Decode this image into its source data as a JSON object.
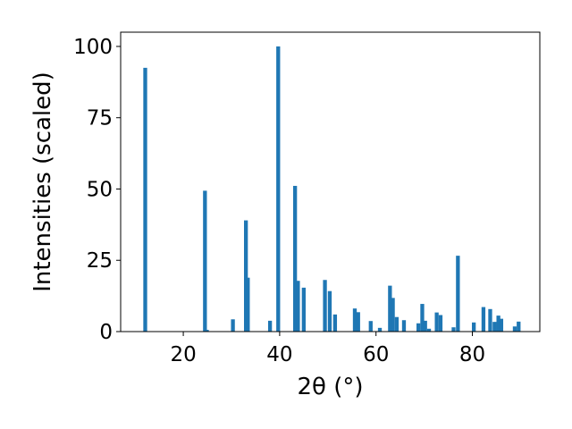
{
  "chart_data": {
    "type": "bar",
    "title": "",
    "xlabel": "2θ (°)",
    "ylabel": "Intensities (scaled)",
    "xlim": [
      7,
      94
    ],
    "ylim": [
      0,
      105
    ],
    "xticks": [
      20,
      40,
      60,
      80
    ],
    "yticks": [
      0,
      25,
      50,
      75,
      100
    ],
    "grid": false,
    "bar_color": "#1f77b4",
    "bar_width_deg": 0.8,
    "x": [
      12.1,
      24.5,
      24.9,
      30.3,
      33.0,
      33.4,
      38.0,
      39.7,
      43.2,
      43.8,
      45.0,
      49.4,
      50.4,
      51.5,
      55.6,
      56.3,
      58.9,
      60.8,
      62.9,
      63.5,
      64.3,
      65.8,
      68.8,
      69.6,
      70.2,
      71.0,
      72.6,
      73.4,
      76.1,
      77.0,
      80.3,
      82.3,
      83.7,
      84.6,
      85.4,
      86.0,
      88.8,
      89.6
    ],
    "values": [
      92.5,
      49.4,
      0.6,
      4.3,
      39.0,
      18.9,
      3.8,
      100.0,
      51.1,
      17.8,
      15.4,
      18.1,
      14.2,
      6.0,
      8.1,
      6.8,
      3.7,
      1.3,
      16.1,
      11.8,
      5.1,
      4.0,
      2.9,
      9.7,
      3.8,
      1.0,
      6.7,
      5.8,
      1.5,
      26.6,
      3.2,
      8.6,
      7.9,
      3.4,
      5.6,
      4.5,
      1.8,
      3.5
    ]
  }
}
